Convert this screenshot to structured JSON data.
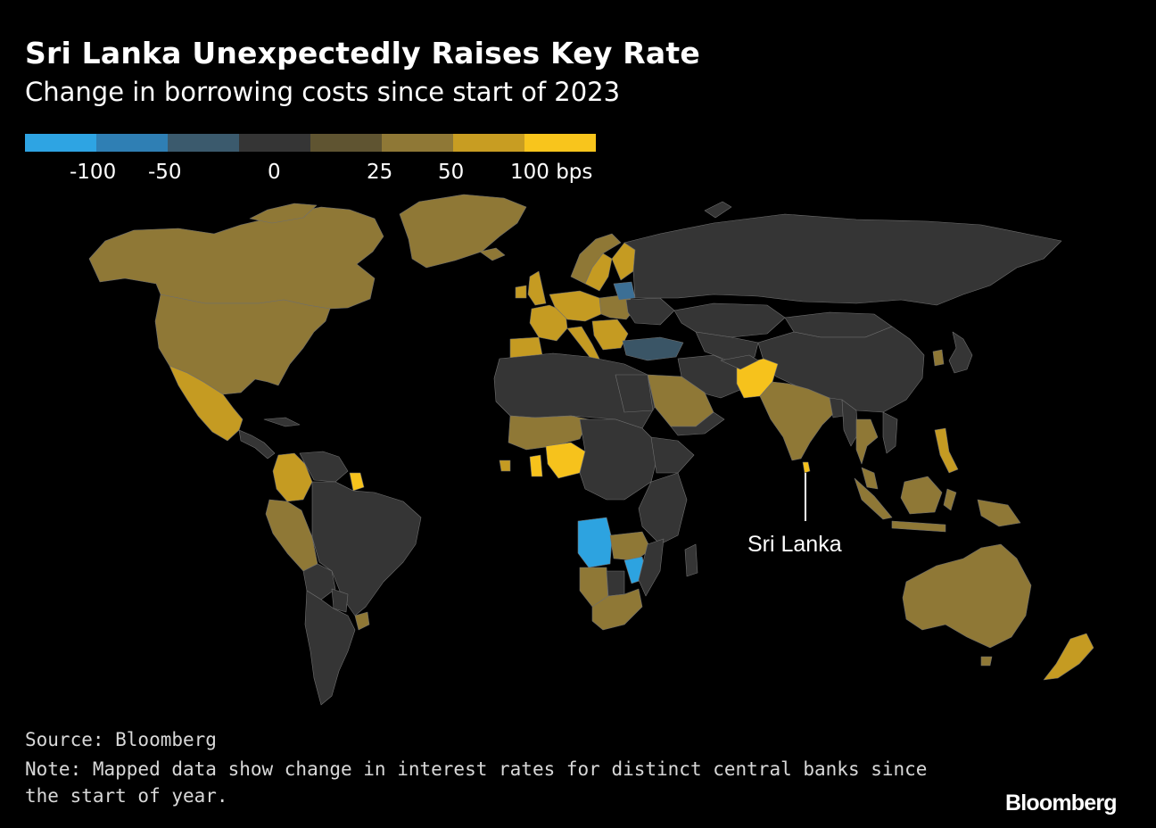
{
  "header": {
    "title": "Sri Lanka Unexpectedly Raises Key Rate",
    "subtitle": "Change in borrowing costs since start of 2023"
  },
  "legend": {
    "bins": [
      {
        "name": "bin-1",
        "color": "#2ea4e3"
      },
      {
        "name": "bin-2",
        "color": "#2f7fb4"
      },
      {
        "name": "bin-3",
        "color": "#3b5a6d"
      },
      {
        "name": "bin-4",
        "color": "#353535"
      },
      {
        "name": "bin-5",
        "color": "#5f5431"
      },
      {
        "name": "bin-6",
        "color": "#8f7836"
      },
      {
        "name": "bin-7",
        "color": "#c89d22"
      },
      {
        "name": "bin-8",
        "color": "#f8c51c"
      }
    ],
    "labels": [
      "-100",
      "-50",
      "0",
      "25",
      "50",
      "100 bps"
    ]
  },
  "chart_data": {
    "type": "choropleth",
    "title": "Sri Lanka Unexpectedly Raises Key Rate",
    "subtitle": "Change in borrowing costs since start of 2023",
    "unit": "bps",
    "scale_breaks": [
      -100,
      -50,
      0,
      25,
      50,
      100
    ],
    "annotations": [
      {
        "label": "Sri Lanka"
      }
    ]
  },
  "map": {
    "annotation_label": "Sri Lanka"
  },
  "footer": {
    "source": "Source: Bloomberg",
    "note": "Note: Mapped data show change in interest rates for distinct central banks since the start of year.",
    "logo": "Bloomberg"
  }
}
